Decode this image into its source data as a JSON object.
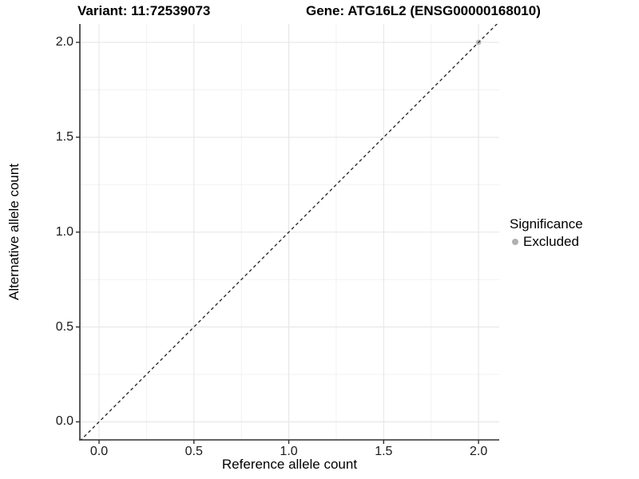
{
  "chart_data": {
    "type": "scatter",
    "title_left": "Variant: 11:72539073",
    "title_right": "Gene: ATG16L2 (ENSG00000168010)",
    "xlabel": "Reference allele count",
    "ylabel": "Alternative allele count",
    "xlim": [
      -0.101,
      2.109
    ],
    "ylim": [
      -0.095,
      2.097
    ],
    "x_ticks": {
      "values": [
        0,
        0.5,
        1,
        1.5,
        2
      ],
      "labels": [
        "0.0",
        "0.5",
        "1.0",
        "1.5",
        "2.0"
      ]
    },
    "y_ticks": {
      "values": [
        0,
        0.5,
        1,
        1.5,
        2
      ],
      "labels": [
        "0.0",
        "0.5",
        "1.0",
        "1.5",
        "2.0"
      ]
    },
    "x_minor_ticks": [
      0.25,
      0.75,
      1.25,
      1.75
    ],
    "y_minor_ticks": [
      0.25,
      0.75,
      1.25,
      1.75
    ],
    "grid": {
      "major": true,
      "minor": true,
      "major_color": "#e6e6e6",
      "minor_color": "#f2f2f2"
    },
    "axis_color": "#2e2e2e",
    "reference_line": {
      "type": "identity",
      "style": "dashed",
      "color": "#222222"
    },
    "series": [
      {
        "name": "Excluded",
        "color": "#bcbcbc",
        "points": [
          {
            "x": 2.0,
            "y": 2.0
          }
        ]
      }
    ],
    "legend": {
      "title": "Significance",
      "position": "right",
      "entries": [
        {
          "label": "Excluded",
          "color": "#b0b0b0"
        }
      ]
    }
  }
}
